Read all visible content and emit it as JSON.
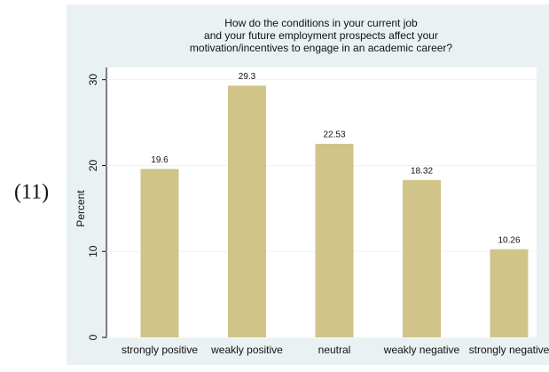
{
  "label": "(11)",
  "chart_data": {
    "type": "bar",
    "title": [
      "How do the conditions in your current job",
      "and your future employment prospects affect your",
      "motivation/incentives to engage in an academic career?"
    ],
    "ylabel": "Percent",
    "categories": [
      "strongly positive",
      "weakly positive",
      "neutral",
      "weakly negative",
      "strongly negative"
    ],
    "values": [
      19.6,
      29.3,
      22.53,
      18.32,
      10.26
    ],
    "color": "#d0c489",
    "ylim": [
      0,
      31
    ],
    "yticks": [
      0,
      10,
      20,
      30
    ],
    "grid": true
  }
}
